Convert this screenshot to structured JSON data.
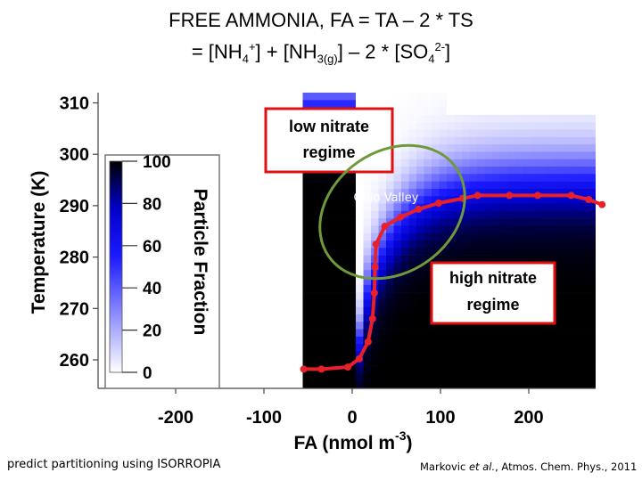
{
  "title": {
    "line1": "FREE AMMONIA, FA = TA – 2 * TS",
    "line2_a": "= [NH",
    "line2_sub1": "4",
    "line2_sup1": "+",
    "line2_b": "] + [NH",
    "line2_sub2": "3(g)",
    "line2_c": "] – 2 * [SO",
    "line2_sub3": "4",
    "line2_sup3": "2-",
    "line2_d": "]"
  },
  "footer": {
    "left": "predict partitioning using ISORROPIA",
    "right_prefix": "Markovic ",
    "right_italic": "et al.",
    "right_suffix": ", Atmos. Chem. Phys., 2011"
  },
  "chart_data": {
    "type": "heatmap",
    "xlabel_main": "FA (nmol m",
    "xlabel_sup": "-3",
    "xlabel_end": ")",
    "ylabel": "Temperature (K)",
    "xlim": [
      -270,
      280
    ],
    "ylim": [
      255,
      312
    ],
    "x_ticks": [
      -200,
      -100,
      0,
      100,
      200
    ],
    "x_tick_labels": [
      "-200",
      "-100",
      "0",
      "100",
      "200"
    ],
    "y_ticks": [
      260,
      270,
      280,
      290,
      300,
      310
    ],
    "y_tick_labels": [
      "260",
      "270",
      "280",
      "290",
      "300",
      "310"
    ],
    "colorbar": {
      "title": "Particle Fraction",
      "ticks": [
        0,
        20,
        40,
        60,
        80,
        100
      ],
      "tick_labels": [
        "0",
        "20",
        "40",
        "60",
        "80",
        "100"
      ],
      "color_low": "#ffffff",
      "color_mid": "#0000ff",
      "color_high": "#000000"
    },
    "regions": [
      {
        "label_line1": "low nitrate",
        "label_line2": "regime",
        "border_color": "#e01010"
      },
      {
        "label_line1": "high nitrate",
        "label_line2": "regime",
        "border_color": "#e01010"
      }
    ],
    "annotation": {
      "label": "Ohio Valley",
      "ellipse_color": "#6f9a3c"
    },
    "series": [
      {
        "color": "#e8202a",
        "points": [
          [
            -55,
            258.2
          ],
          [
            -35,
            258.2
          ],
          [
            -5,
            258.6
          ],
          [
            8,
            260.2
          ],
          [
            18,
            263.5
          ],
          [
            23,
            268
          ],
          [
            25,
            273
          ],
          [
            26,
            278
          ],
          [
            27,
            282.5
          ],
          [
            37,
            286
          ],
          [
            55,
            287.8
          ],
          [
            75,
            289.3
          ],
          [
            98,
            290.5
          ],
          [
            125,
            291.4
          ],
          [
            142,
            292.0
          ],
          [
            178,
            292.0
          ],
          [
            210,
            292.0
          ],
          [
            248,
            292.0
          ],
          [
            268,
            291.2
          ],
          [
            283,
            290.2
          ]
        ]
      }
    ]
  }
}
